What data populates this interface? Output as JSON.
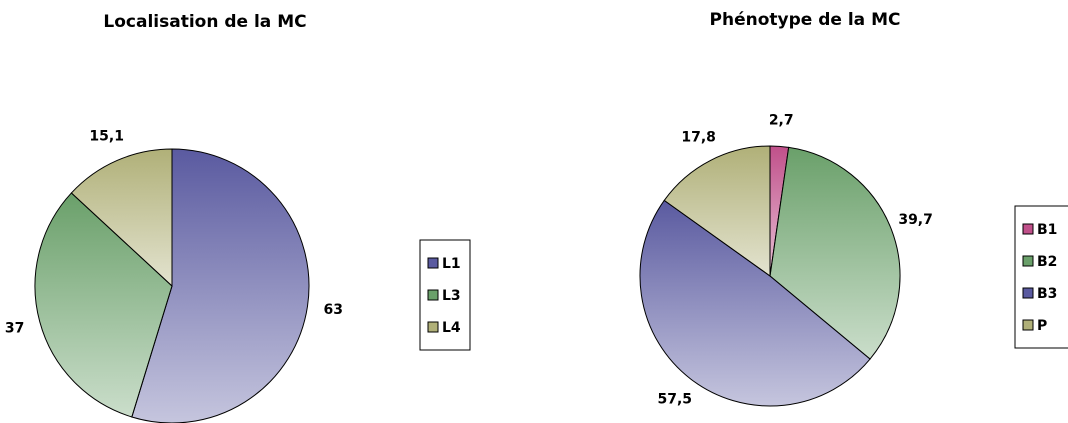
{
  "chart_data": [
    {
      "type": "pie",
      "title": "Localisation de la MC",
      "categories": [
        "L1",
        "L3",
        "L4"
      ],
      "values": [
        63,
        37,
        15.1
      ],
      "value_labels": [
        "63",
        "37",
        "15,1"
      ],
      "colors": [
        "#5a5aa0",
        "#6aa06a",
        "#b0b078"
      ]
    },
    {
      "type": "pie",
      "title": "Phénotype de la MC",
      "categories": [
        "B1",
        "B2",
        "B3",
        "P"
      ],
      "values": [
        2.7,
        39.7,
        57.5,
        17.8
      ],
      "value_labels": [
        "2,7",
        "39,7",
        "57,5",
        "17,8"
      ],
      "colors": [
        "#c0508a",
        "#6aa06a",
        "#5a5aa0",
        "#b0b078"
      ]
    }
  ]
}
